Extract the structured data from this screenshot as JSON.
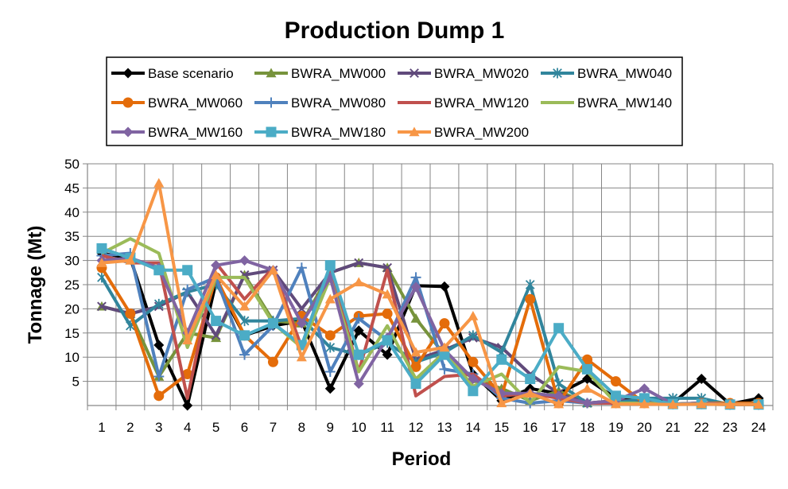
{
  "chart_data": {
    "type": "line",
    "title": "Production Dump 1",
    "xlabel": "Period",
    "ylabel": "Tonnage (Mt)",
    "categories": [
      "1",
      "2",
      "3",
      "4",
      "5",
      "6",
      "7",
      "8",
      "9",
      "10",
      "11",
      "12",
      "13",
      "14",
      "15",
      "16",
      "17",
      "18",
      "19",
      "20",
      "21",
      "22",
      "23",
      "24"
    ],
    "ylim": [
      0,
      50
    ],
    "yticks": [
      5,
      10,
      15,
      20,
      25,
      30,
      35,
      40,
      45,
      50
    ],
    "grid": true,
    "legend": "top",
    "series": [
      {
        "name": "Base scenario",
        "color": "#000000",
        "marker": "diamond",
        "values": [
          31.5,
          30.5,
          12.5,
          0,
          25.5,
          14.5,
          16.5,
          17.5,
          3.5,
          15.5,
          10.5,
          24.8,
          24.6,
          6.5,
          1.0,
          3.5,
          2.5,
          5.5,
          1.5,
          1.5,
          0.5,
          5.5,
          0.3,
          1.5
        ]
      },
      {
        "name": "BWRA_MW000",
        "color": "#77933C",
        "marker": "triangle",
        "values": [
          20.5,
          19.0,
          6.0,
          15.0,
          14.0,
          27.0,
          17.5,
          17.0,
          27.5,
          29.5,
          28.5,
          18.0,
          10.5,
          5.5,
          3.5,
          1.0,
          3.0,
          0.5,
          1.0,
          1.0,
          0.3,
          0.5,
          0.2,
          0.2
        ]
      },
      {
        "name": "BWRA_MW020",
        "color": "#604A7B",
        "marker": "x",
        "values": [
          20.5,
          19.0,
          20.5,
          23.5,
          14.5,
          27.0,
          28.0,
          20.0,
          27.5,
          29.5,
          28.5,
          9.5,
          11.5,
          14.0,
          12.0,
          6.5,
          2.5,
          0.5,
          1.0,
          1.0,
          0.3,
          0.5,
          0.2,
          0.2
        ]
      },
      {
        "name": "BWRA_MW040",
        "color": "#31859C",
        "marker": "star",
        "values": [
          26.5,
          16.5,
          21.0,
          23.5,
          25.0,
          17.5,
          17.5,
          18.0,
          12.0,
          10.5,
          13.0,
          9.0,
          11.0,
          14.5,
          11.0,
          25.0,
          4.5,
          0.5,
          0.5,
          1.5,
          1.5,
          1.5,
          0.2,
          0.2
        ]
      },
      {
        "name": "BWRA_MW060",
        "color": "#E46C0A",
        "marker": "circle",
        "values": [
          28.5,
          19.0,
          2.0,
          6.5,
          26.5,
          14.5,
          9.0,
          18.5,
          14.5,
          18.5,
          19.0,
          8.0,
          17.0,
          9.0,
          2.0,
          22.0,
          0.5,
          9.5,
          5.0,
          0.5,
          0.3,
          0.5,
          0.5,
          0.5
        ]
      },
      {
        "name": "BWRA_MW080",
        "color": "#4F81BD",
        "marker": "plus",
        "values": [
          31.0,
          31.5,
          6.0,
          24.0,
          26.5,
          10.5,
          16.5,
          28.5,
          7.0,
          18.0,
          13.5,
          26.5,
          7.5,
          6.5,
          1.5,
          0.5,
          1.0,
          0.5,
          0.5,
          0.5,
          0.3,
          0.3,
          0.2,
          0.2
        ]
      },
      {
        "name": "BWRA_MW120",
        "color": "#C0504D",
        "marker": "none",
        "values": [
          31.0,
          29.5,
          29.5,
          1.5,
          29.5,
          22.0,
          28.5,
          12.0,
          28.5,
          7.0,
          28.0,
          2.0,
          6.0,
          6.5,
          2.0,
          2.5,
          1.5,
          0.5,
          0.5,
          0.5,
          0.3,
          0.5,
          0.2,
          0.2
        ]
      },
      {
        "name": "BWRA_MW140",
        "color": "#9BBB59",
        "marker": "none",
        "values": [
          31.5,
          34.5,
          31.5,
          12.0,
          26.5,
          26.5,
          17.0,
          12.0,
          26.5,
          7.0,
          16.5,
          5.5,
          11.0,
          4.0,
          6.5,
          0.5,
          8.0,
          7.0,
          0.5,
          0.5,
          0.3,
          0.5,
          0.2,
          0.2
        ]
      },
      {
        "name": "BWRA_MW160",
        "color": "#8064A2",
        "marker": "diamond",
        "values": [
          30.0,
          30.5,
          28.5,
          15.0,
          29.0,
          30.0,
          28.0,
          17.0,
          26.5,
          4.5,
          14.0,
          24.5,
          11.5,
          5.5,
          2.5,
          2.5,
          2.0,
          0.5,
          1.0,
          3.5,
          0.3,
          0.5,
          0.2,
          0.2
        ]
      },
      {
        "name": "BWRA_MW180",
        "color": "#4BACC6",
        "marker": "square",
        "values": [
          32.5,
          30.5,
          28.0,
          28.0,
          17.5,
          14.5,
          17.0,
          12.5,
          29.0,
          10.5,
          13.5,
          4.5,
          10.5,
          3.0,
          9.5,
          5.5,
          16.0,
          7.5,
          2.0,
          1.5,
          0.3,
          0.3,
          0.2,
          0.2
        ]
      },
      {
        "name": "BWRA_MW200",
        "color": "#F79646",
        "marker": "triangle",
        "values": [
          29.5,
          30.0,
          46.0,
          13.5,
          27.0,
          20.5,
          28.0,
          10.0,
          22.0,
          25.5,
          23.0,
          11.0,
          12.0,
          18.5,
          0.5,
          2.5,
          0.3,
          3.5,
          0.3,
          0.3,
          0.2,
          0.3,
          0.2,
          0.2
        ]
      }
    ]
  }
}
